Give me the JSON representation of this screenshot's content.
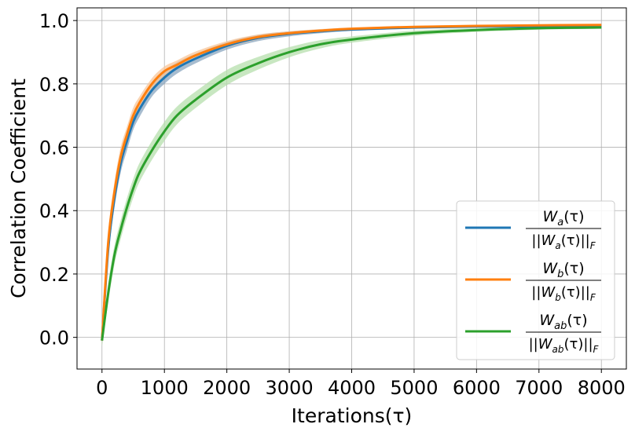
{
  "chart_data": {
    "type": "line",
    "xlabel": "Iterations(τ)",
    "ylabel": "Correlation Coefficient",
    "xlim": [
      -400,
      8400
    ],
    "ylim": [
      -0.1,
      1.04
    ],
    "xticks": [
      0,
      1000,
      2000,
      3000,
      4000,
      5000,
      6000,
      7000,
      8000
    ],
    "yticks": [
      0.0,
      0.2,
      0.4,
      0.6,
      0.8,
      1.0
    ],
    "xtick_labels": [
      "0",
      "1000",
      "2000",
      "3000",
      "4000",
      "5000",
      "6000",
      "7000",
      "8000"
    ],
    "ytick_labels": [
      "0.0",
      "0.2",
      "0.4",
      "0.6",
      "0.8",
      "1.0"
    ],
    "grid": true,
    "legend_position": "lower-right",
    "x": [
      0,
      100,
      200,
      300,
      400,
      500,
      600,
      800,
      1000,
      1200,
      1500,
      2000,
      2500,
      3000,
      3500,
      4000,
      5000,
      6000,
      7000,
      8000
    ],
    "series": [
      {
        "name": "W_a(τ) / ||W_a(τ)||_F",
        "label_num": "W",
        "label_num_sub": "a",
        "label_den": "||W",
        "label_den_sub": "a",
        "label_den_tail": "(τ)||",
        "label_den_sub2": "F",
        "color": "#1f77b4",
        "band_color": "#8aa6bf",
        "values": [
          -0.01,
          0.28,
          0.44,
          0.55,
          0.62,
          0.68,
          0.72,
          0.78,
          0.82,
          0.85,
          0.88,
          0.92,
          0.945,
          0.958,
          0.966,
          0.972,
          0.978,
          0.981,
          0.982,
          0.983
        ],
        "band": [
          0.02,
          0.03,
          0.03,
          0.03,
          0.03,
          0.025,
          0.025,
          0.02,
          0.02,
          0.018,
          0.015,
          0.012,
          0.01,
          0.008,
          0.006,
          0.005,
          0.004,
          0.003,
          0.003,
          0.003
        ]
      },
      {
        "name": "W_b(τ) / ||W_b(τ)||_F",
        "label_num": "W",
        "label_num_sub": "b",
        "label_den": "||W",
        "label_den_sub": "b",
        "label_den_tail": "(τ)||",
        "label_den_sub2": "F",
        "color": "#ff7f0e",
        "band_color": "#f7c59a",
        "values": [
          -0.01,
          0.3,
          0.46,
          0.57,
          0.64,
          0.7,
          0.74,
          0.8,
          0.84,
          0.86,
          0.89,
          0.925,
          0.948,
          0.96,
          0.968,
          0.974,
          0.98,
          0.983,
          0.985,
          0.986
        ],
        "band": [
          0.02,
          0.03,
          0.03,
          0.03,
          0.025,
          0.025,
          0.02,
          0.018,
          0.015,
          0.014,
          0.012,
          0.01,
          0.008,
          0.006,
          0.005,
          0.004,
          0.003,
          0.003,
          0.003,
          0.003
        ]
      },
      {
        "name": "W_ab(τ) / ||W_ab(τ)||_F",
        "label_num": "W",
        "label_num_sub": "ab",
        "label_den": "||W",
        "label_den_sub": "ab",
        "label_den_tail": "(τ)||",
        "label_den_sub2": "F",
        "color": "#2ca02c",
        "band_color": "#b6dfac",
        "values": [
          -0.01,
          0.14,
          0.26,
          0.34,
          0.41,
          0.47,
          0.52,
          0.59,
          0.65,
          0.7,
          0.75,
          0.82,
          0.865,
          0.9,
          0.925,
          0.94,
          0.96,
          0.97,
          0.976,
          0.978
        ],
        "band": [
          0.02,
          0.03,
          0.03,
          0.03,
          0.03,
          0.03,
          0.03,
          0.03,
          0.03,
          0.028,
          0.026,
          0.024,
          0.02,
          0.016,
          0.013,
          0.01,
          0.008,
          0.006,
          0.005,
          0.004
        ]
      }
    ]
  }
}
